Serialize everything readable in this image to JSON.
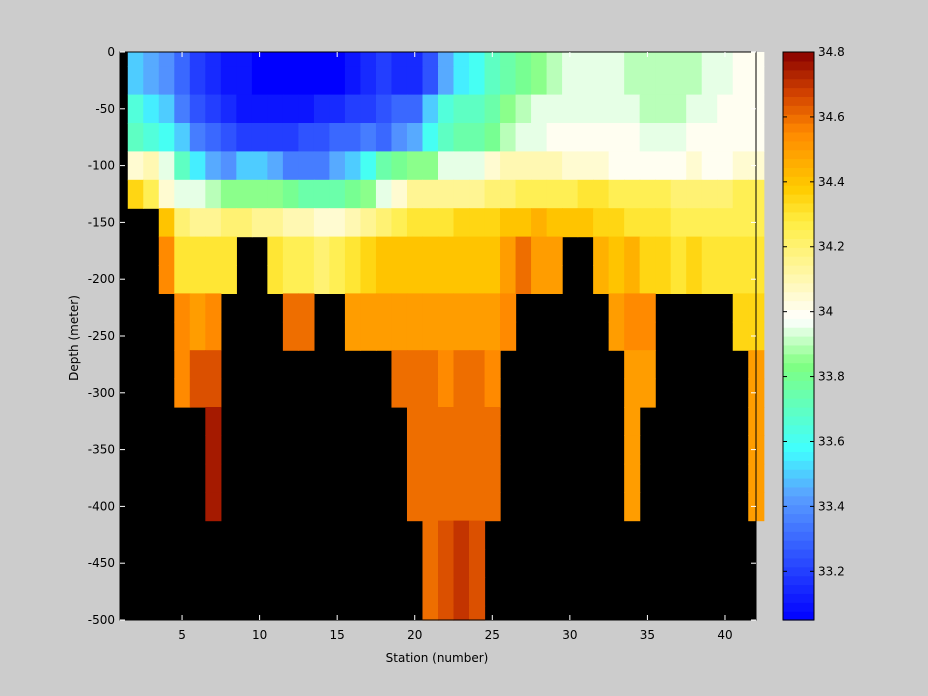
{
  "chart_data": {
    "type": "heatmap",
    "title": "",
    "xlabel": "Station (number)",
    "ylabel": "Depth (meter)",
    "xlim": [
      1,
      42
    ],
    "ylim": [
      -500,
      0
    ],
    "x_ticks": [
      5,
      10,
      15,
      20,
      25,
      30,
      35,
      40
    ],
    "y_ticks": [
      0,
      -50,
      -100,
      -150,
      -200,
      -250,
      -300,
      -350,
      -400,
      -450,
      -500
    ],
    "stations": [
      2,
      3,
      4,
      5,
      6,
      7,
      8,
      9,
      10,
      11,
      12,
      13,
      14,
      15,
      16,
      17,
      18,
      19,
      20,
      21,
      22,
      23,
      24,
      25,
      26,
      27,
      28,
      29,
      30,
      31,
      32,
      33,
      34,
      35,
      36,
      37,
      38,
      39,
      40,
      41,
      42
    ],
    "depths": [
      0,
      -25,
      -50,
      -75,
      -100,
      -125,
      -150,
      -175,
      -200,
      -225,
      -250,
      -275,
      -300,
      -325,
      -350,
      -375,
      -400,
      -425,
      -450,
      -475,
      -500
    ],
    "no_data_color": "#000000",
    "no_data_note": "null = no data (below sea floor)",
    "salinity": [
      [
        33.5,
        33.45,
        33.4,
        33.3,
        33.2,
        33.15,
        33.1,
        33.1,
        33.05,
        33.05,
        33.05,
        33.05,
        33.05,
        33.05,
        33.1,
        33.15,
        33.2,
        33.15,
        33.15,
        33.25,
        33.45,
        33.55,
        33.6,
        33.7,
        33.75,
        33.8,
        33.85,
        33.9,
        33.95,
        33.95,
        33.95,
        33.95,
        33.9,
        33.9,
        33.9,
        33.9,
        33.9,
        33.95,
        33.95,
        34.0,
        34.0
      ],
      [
        33.5,
        33.45,
        33.4,
        33.3,
        33.2,
        33.15,
        33.1,
        33.1,
        33.05,
        33.05,
        33.05,
        33.05,
        33.05,
        33.05,
        33.1,
        33.15,
        33.2,
        33.15,
        33.15,
        33.25,
        33.45,
        33.55,
        33.6,
        33.7,
        33.75,
        33.8,
        33.85,
        33.9,
        33.95,
        33.95,
        33.95,
        33.95,
        33.9,
        33.9,
        33.9,
        33.9,
        33.9,
        33.95,
        33.95,
        34.0,
        34.0
      ],
      [
        33.65,
        33.55,
        33.5,
        33.35,
        33.25,
        33.2,
        33.15,
        33.1,
        33.1,
        33.1,
        33.1,
        33.1,
        33.15,
        33.15,
        33.2,
        33.2,
        33.25,
        33.3,
        33.3,
        33.5,
        33.65,
        33.7,
        33.7,
        33.75,
        33.85,
        33.9,
        33.95,
        33.95,
        33.95,
        33.95,
        33.95,
        33.95,
        33.95,
        33.9,
        33.9,
        33.9,
        33.95,
        33.95,
        34.0,
        34.0,
        34.0
      ],
      [
        33.7,
        33.65,
        33.6,
        33.5,
        33.35,
        33.3,
        33.25,
        33.2,
        33.2,
        33.2,
        33.2,
        33.25,
        33.25,
        33.3,
        33.3,
        33.35,
        33.3,
        33.4,
        33.45,
        33.6,
        33.7,
        33.75,
        33.75,
        33.8,
        33.9,
        33.95,
        33.95,
        34.0,
        34.0,
        34.0,
        34.0,
        34.0,
        34.0,
        33.95,
        33.95,
        33.95,
        34.0,
        34.0,
        34.0,
        34.0,
        34.0
      ],
      [
        34.05,
        34.1,
        33.95,
        33.7,
        33.55,
        33.45,
        33.4,
        33.5,
        33.5,
        33.45,
        33.35,
        33.35,
        33.35,
        33.45,
        33.5,
        33.6,
        33.75,
        33.8,
        33.85,
        33.85,
        33.95,
        33.95,
        33.95,
        34.05,
        34.1,
        34.1,
        34.1,
        34.1,
        34.05,
        34.05,
        34.05,
        34.0,
        34.0,
        34.0,
        34.0,
        34.0,
        34.05,
        34.0,
        34.0,
        34.05,
        34.05
      ],
      [
        34.35,
        34.25,
        34.05,
        33.95,
        33.95,
        33.9,
        33.85,
        33.85,
        33.85,
        33.85,
        33.8,
        33.75,
        33.75,
        33.75,
        33.8,
        33.85,
        33.95,
        34.05,
        34.15,
        34.15,
        34.15,
        34.15,
        34.15,
        34.2,
        34.2,
        34.25,
        34.25,
        34.25,
        34.25,
        34.3,
        34.3,
        34.25,
        34.25,
        34.25,
        34.25,
        34.2,
        34.2,
        34.2,
        34.2,
        34.25,
        34.25
      ],
      [
        null,
        null,
        34.4,
        34.2,
        34.15,
        34.15,
        34.2,
        34.2,
        34.15,
        34.15,
        34.1,
        34.1,
        34.05,
        34.05,
        34.1,
        34.15,
        34.2,
        34.25,
        34.3,
        34.3,
        34.3,
        34.35,
        34.35,
        34.35,
        34.4,
        34.4,
        34.45,
        34.4,
        34.4,
        34.4,
        34.35,
        34.35,
        34.3,
        34.3,
        34.3,
        34.25,
        34.25,
        34.25,
        34.25,
        34.25,
        34.25
      ],
      [
        null,
        null,
        34.55,
        34.3,
        34.3,
        34.3,
        34.3,
        null,
        null,
        34.3,
        34.25,
        34.25,
        34.2,
        34.25,
        34.3,
        34.35,
        34.4,
        34.4,
        34.4,
        34.4,
        34.4,
        34.4,
        34.4,
        34.4,
        34.5,
        34.6,
        34.5,
        34.5,
        null,
        null,
        34.45,
        34.4,
        34.45,
        34.35,
        34.35,
        34.3,
        34.35,
        34.3,
        34.3,
        34.3,
        34.3
      ],
      [
        null,
        null,
        34.55,
        34.3,
        34.3,
        34.3,
        34.3,
        null,
        null,
        34.3,
        34.25,
        34.25,
        34.2,
        34.25,
        34.3,
        34.35,
        34.4,
        34.4,
        34.4,
        34.4,
        34.4,
        34.4,
        34.4,
        34.4,
        34.5,
        34.6,
        34.5,
        34.5,
        null,
        null,
        34.45,
        34.4,
        34.45,
        34.35,
        34.35,
        34.3,
        34.35,
        34.3,
        34.3,
        34.3,
        34.3
      ],
      [
        null,
        null,
        null,
        34.55,
        34.5,
        34.55,
        null,
        null,
        null,
        null,
        34.6,
        34.6,
        null,
        null,
        34.5,
        34.5,
        34.5,
        34.5,
        34.5,
        34.5,
        34.5,
        34.5,
        34.5,
        34.5,
        34.55,
        null,
        null,
        null,
        null,
        null,
        null,
        34.5,
        34.55,
        34.55,
        null,
        null,
        null,
        null,
        null,
        34.35,
        34.35
      ],
      [
        null,
        null,
        null,
        34.55,
        34.5,
        34.55,
        null,
        null,
        null,
        null,
        34.6,
        34.6,
        null,
        null,
        34.5,
        34.5,
        34.5,
        34.5,
        34.5,
        34.5,
        34.5,
        34.5,
        34.5,
        34.5,
        34.55,
        null,
        null,
        null,
        null,
        null,
        null,
        34.5,
        34.55,
        34.55,
        null,
        null,
        null,
        null,
        null,
        34.35,
        34.35
      ],
      [
        null,
        null,
        null,
        34.55,
        34.65,
        34.65,
        null,
        null,
        null,
        null,
        null,
        null,
        null,
        null,
        null,
        null,
        null,
        34.6,
        34.6,
        34.6,
        34.55,
        34.6,
        34.6,
        34.55,
        null,
        null,
        null,
        null,
        null,
        null,
        null,
        null,
        34.5,
        34.5,
        null,
        null,
        null,
        null,
        null,
        null,
        34.5
      ],
      [
        null,
        null,
        null,
        34.55,
        34.65,
        34.65,
        null,
        null,
        null,
        null,
        null,
        null,
        null,
        null,
        null,
        null,
        null,
        34.6,
        34.6,
        34.6,
        34.55,
        34.6,
        34.6,
        34.55,
        null,
        null,
        null,
        null,
        null,
        null,
        null,
        null,
        34.5,
        34.5,
        null,
        null,
        null,
        null,
        null,
        null,
        34.5
      ],
      [
        null,
        null,
        null,
        null,
        null,
        34.75,
        null,
        null,
        null,
        null,
        null,
        null,
        null,
        null,
        null,
        null,
        null,
        null,
        34.6,
        34.6,
        34.6,
        34.6,
        34.6,
        34.6,
        null,
        null,
        null,
        null,
        null,
        null,
        null,
        null,
        34.5,
        null,
        null,
        null,
        null,
        null,
        null,
        null,
        34.5
      ],
      [
        null,
        null,
        null,
        null,
        null,
        34.75,
        null,
        null,
        null,
        null,
        null,
        null,
        null,
        null,
        null,
        null,
        null,
        null,
        34.6,
        34.6,
        34.6,
        34.6,
        34.6,
        34.6,
        null,
        null,
        null,
        null,
        null,
        null,
        null,
        null,
        34.5,
        null,
        null,
        null,
        null,
        null,
        null,
        null,
        34.5
      ],
      [
        null,
        null,
        null,
        null,
        null,
        34.75,
        null,
        null,
        null,
        null,
        null,
        null,
        null,
        null,
        null,
        null,
        null,
        null,
        34.6,
        34.6,
        34.6,
        34.6,
        34.6,
        34.6,
        null,
        null,
        null,
        null,
        null,
        null,
        null,
        null,
        34.5,
        null,
        null,
        null,
        null,
        null,
        null,
        null,
        34.5
      ],
      [
        null,
        null,
        null,
        null,
        null,
        34.75,
        null,
        null,
        null,
        null,
        null,
        null,
        null,
        null,
        null,
        null,
        null,
        null,
        34.6,
        34.6,
        34.6,
        34.6,
        34.6,
        34.6,
        null,
        null,
        null,
        null,
        null,
        null,
        null,
        null,
        34.5,
        null,
        null,
        null,
        null,
        null,
        null,
        null,
        34.5
      ],
      [
        null,
        null,
        null,
        null,
        null,
        null,
        null,
        null,
        null,
        null,
        null,
        null,
        null,
        null,
        null,
        null,
        null,
        null,
        null,
        34.6,
        34.65,
        34.7,
        34.65,
        null,
        null,
        null,
        null,
        null,
        null,
        null,
        null,
        null,
        null,
        null,
        null,
        null,
        null,
        null,
        null,
        null,
        null
      ],
      [
        null,
        null,
        null,
        null,
        null,
        null,
        null,
        null,
        null,
        null,
        null,
        null,
        null,
        null,
        null,
        null,
        null,
        null,
        null,
        34.6,
        34.65,
        34.7,
        34.65,
        null,
        null,
        null,
        null,
        null,
        null,
        null,
        null,
        null,
        null,
        null,
        null,
        null,
        null,
        null,
        null,
        null,
        null
      ],
      [
        null,
        null,
        null,
        null,
        null,
        null,
        null,
        null,
        null,
        null,
        null,
        null,
        null,
        null,
        null,
        null,
        null,
        null,
        null,
        34.6,
        34.65,
        34.7,
        34.65,
        null,
        null,
        null,
        null,
        null,
        null,
        null,
        null,
        null,
        null,
        null,
        null,
        null,
        null,
        null,
        null,
        null,
        null
      ],
      [
        null,
        null,
        null,
        null,
        null,
        null,
        null,
        null,
        null,
        null,
        null,
        null,
        null,
        null,
        null,
        null,
        null,
        null,
        null,
        34.6,
        34.65,
        34.7,
        34.65,
        null,
        null,
        null,
        null,
        null,
        null,
        null,
        null,
        null,
        null,
        null,
        null,
        null,
        null,
        null,
        null,
        null,
        null
      ]
    ],
    "colorbar": {
      "min": 33.05,
      "max": 34.8,
      "ticks": [
        33.2,
        33.4,
        33.6,
        33.8,
        34,
        34.2,
        34.4,
        34.6,
        34.8
      ],
      "tick_labels": [
        "33.2",
        "33.4",
        "33.6",
        "33.8",
        "34",
        "34.2",
        "34.4",
        "34.6",
        "34.8"
      ],
      "colormap": [
        {
          "v": 0.0,
          "c": "#0000ff"
        },
        {
          "v": 0.22,
          "c": "#5aa0ff"
        },
        {
          "v": 0.3,
          "c": "#40ffff"
        },
        {
          "v": 0.45,
          "c": "#80ff80"
        },
        {
          "v": 0.53,
          "c": "#ffffff"
        },
        {
          "v": 0.7,
          "c": "#ffee44"
        },
        {
          "v": 0.76,
          "c": "#ffcc00"
        },
        {
          "v": 0.86,
          "c": "#ff8800"
        },
        {
          "v": 0.93,
          "c": "#d04000"
        },
        {
          "v": 1.0,
          "c": "#880000"
        }
      ]
    }
  }
}
